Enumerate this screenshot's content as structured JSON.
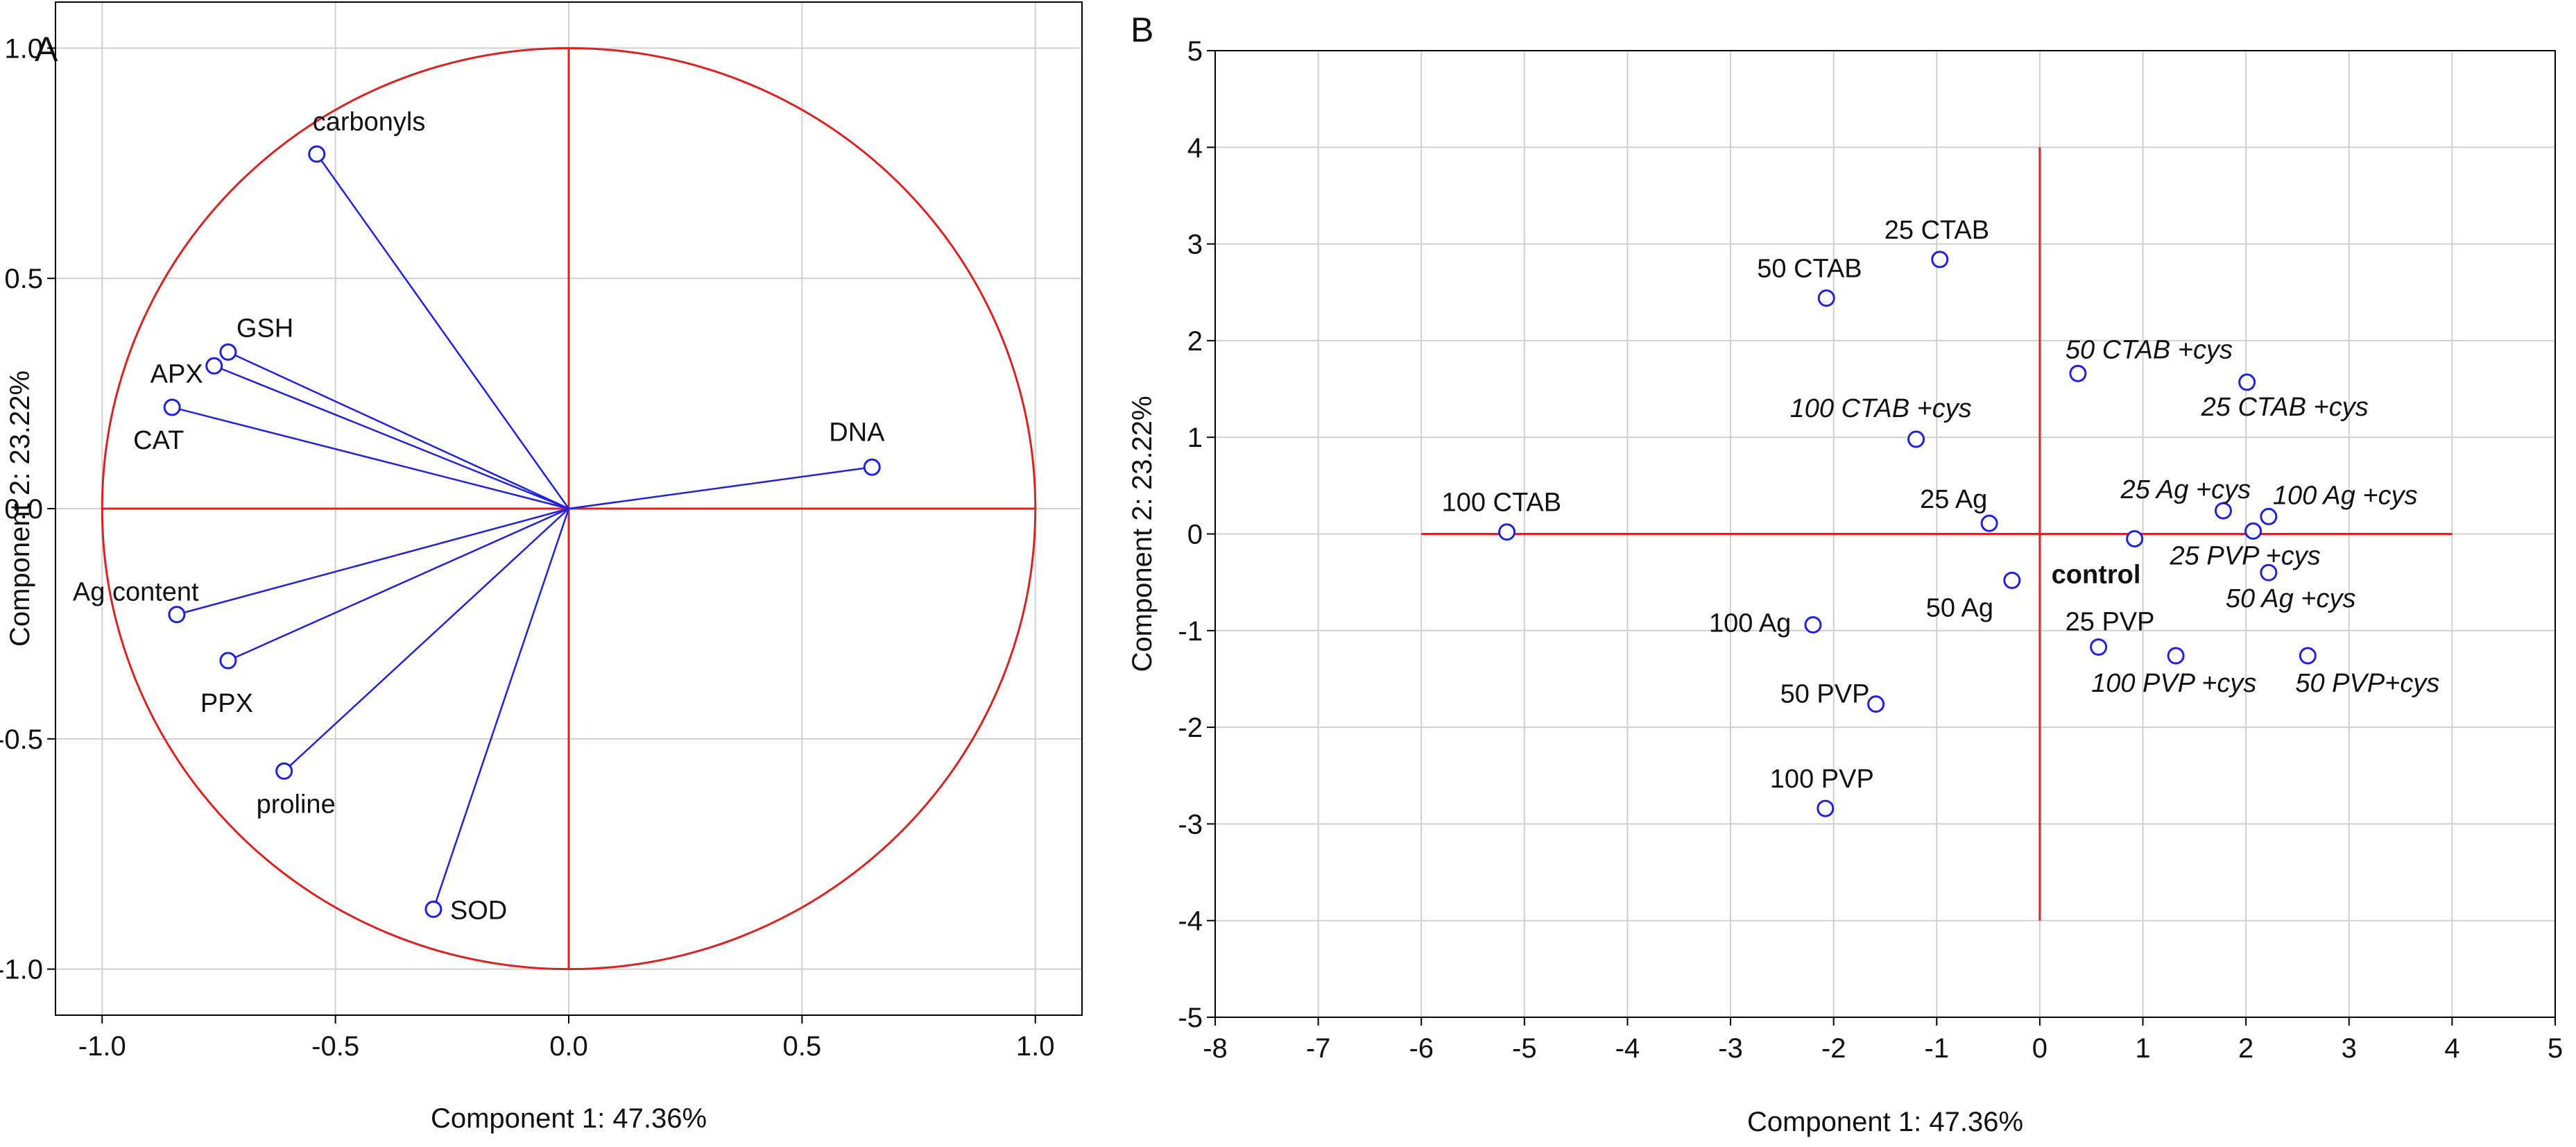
{
  "chart_data": [
    {
      "type": "scatter",
      "panel_label": "A",
      "xlabel": "Component 1: 47.36%",
      "ylabel": "Component 2: 23.22%",
      "xlim": [
        -1.1,
        1.1
      ],
      "ylim": [
        -1.1,
        1.1
      ],
      "xticks": [
        "-1.0",
        "-0.5",
        "0.0",
        "0.5",
        "1.0"
      ],
      "yticks": [
        "1.0",
        "0.5",
        "0.0",
        "-0.5",
        "-1.0"
      ],
      "grid": true,
      "unit_circle": true,
      "vectors_from_origin": true,
      "colors": {
        "vector": "#2020e0",
        "circle": "#e02020",
        "axes": "#e02020"
      },
      "points": [
        {
          "label": "carbonyls",
          "x": -0.54,
          "y": 0.77
        },
        {
          "label": "GSH",
          "x": -0.73,
          "y": 0.34
        },
        {
          "label": "APX",
          "x": -0.76,
          "y": 0.31
        },
        {
          "label": "CAT",
          "x": -0.85,
          "y": 0.22
        },
        {
          "label": "DNA",
          "x": 0.65,
          "y": 0.09
        },
        {
          "label": "Ag content",
          "x": -0.84,
          "y": -0.23
        },
        {
          "label": "PPX",
          "x": -0.73,
          "y": -0.33
        },
        {
          "label": "proline",
          "x": -0.61,
          "y": -0.57
        },
        {
          "label": "SOD",
          "x": -0.29,
          "y": -0.87
        }
      ]
    },
    {
      "type": "scatter",
      "panel_label": "B",
      "xlabel": "Component 1: 47.36%",
      "ylabel": "Component 2: 23.22%",
      "xlim": [
        -8,
        5
      ],
      "ylim": [
        -5,
        5
      ],
      "xticks": [
        "-8",
        "-7",
        "-6",
        "-5",
        "-4",
        "-3",
        "-2",
        "-1",
        "0",
        "1",
        "2",
        "3",
        "4",
        "5"
      ],
      "yticks": [
        "5",
        "4",
        "3",
        "2",
        "1",
        "0",
        "-1",
        "-2",
        "-3",
        "-4",
        "-5"
      ],
      "grid": true,
      "colors": {
        "point": "#2020e0",
        "axes": "#e02020"
      },
      "points": [
        {
          "label": "25 CTAB",
          "x": -0.97,
          "y": 2.84
        },
        {
          "label": "50 CTAB",
          "x": -2.07,
          "y": 2.44
        },
        {
          "label": "50 CTAB +cys",
          "x": 0.37,
          "y": 1.66
        },
        {
          "label": "25 CTAB +cys",
          "x": 2.01,
          "y": 1.57
        },
        {
          "label": "100 CTAB +cys",
          "x": -1.2,
          "y": 0.98
        },
        {
          "label": "100 CTAB",
          "x": -5.17,
          "y": 0.02
        },
        {
          "label": "25 Ag",
          "x": -0.49,
          "y": 0.11
        },
        {
          "label": "25 Ag +cys",
          "x": 1.78,
          "y": 0.24
        },
        {
          "label": "100 Ag +cys",
          "x": 2.22,
          "y": 0.18
        },
        {
          "label": "25 PVP +cys",
          "x": 2.07,
          "y": 0.03
        },
        {
          "label": "control",
          "x": 0.92,
          "y": -0.05
        },
        {
          "label": "50 Ag +cys",
          "x": 2.22,
          "y": -0.4
        },
        {
          "label": "50 Ag",
          "x": -0.27,
          "y": -0.48
        },
        {
          "label": "100 Ag",
          "x": -2.2,
          "y": -0.94
        },
        {
          "label": "25 PVP",
          "x": 0.57,
          "y": -1.17
        },
        {
          "label": "100 PVP +cys",
          "x": 1.32,
          "y": -1.26
        },
        {
          "label": "50 PVP+cys",
          "x": 2.6,
          "y": -1.26
        },
        {
          "label": "50 PVP",
          "x": -1.59,
          "y": -1.76
        },
        {
          "label": "100 PVP",
          "x": -2.08,
          "y": -2.84
        }
      ]
    }
  ]
}
